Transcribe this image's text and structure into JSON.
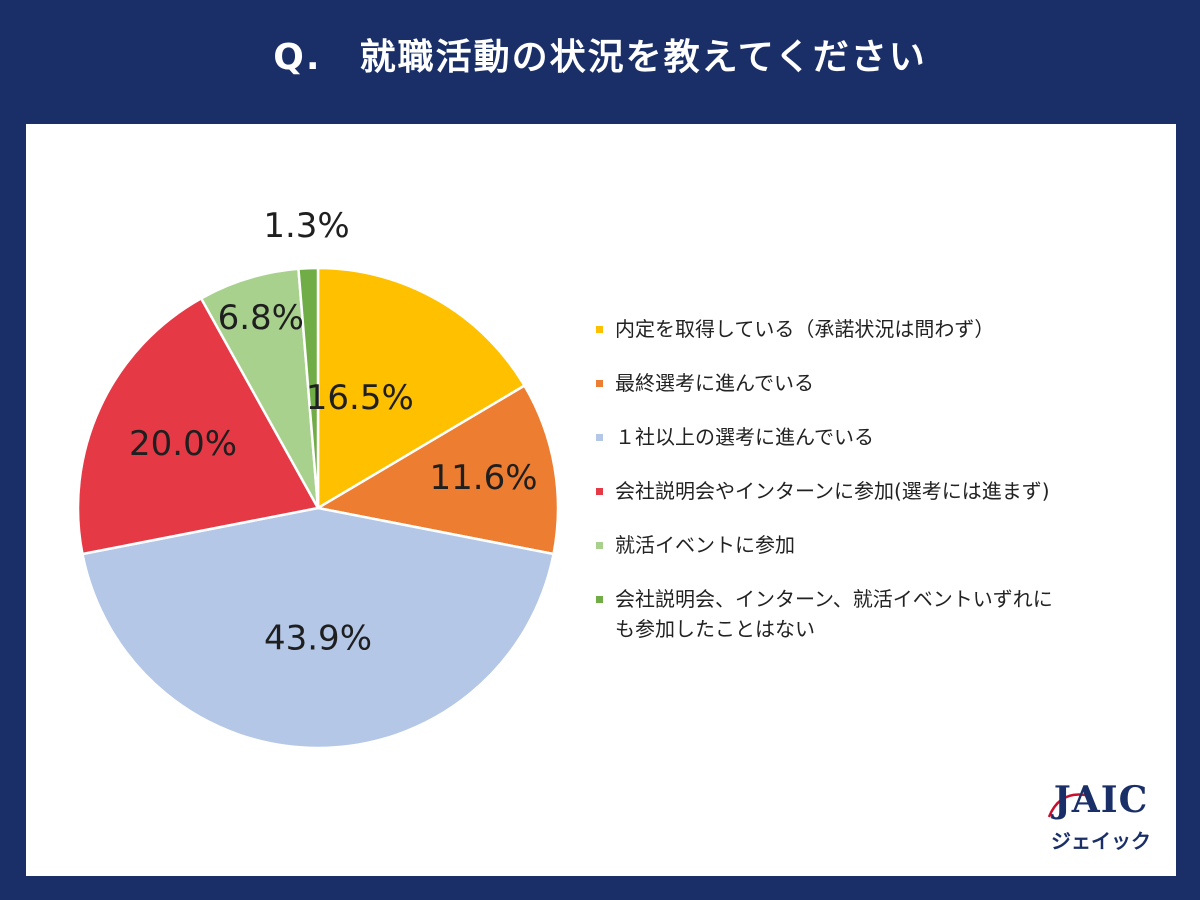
{
  "title": "Q.　就職活動の状況を教えてください",
  "colors": {
    "background": "#1a2f68",
    "panel": "#ffffff"
  },
  "chart_data": {
    "type": "pie",
    "categories": [
      "内定を取得している（承諾状況は問わず）",
      "最終選考に進んでいる",
      "１社以上の選考に進んでいる",
      "会社説明会やインターンに参加(選考には進まず)",
      "就活イベントに参加",
      "会社説明会、インターン、就活イベントいずれにも参加したことはない"
    ],
    "values": [
      16.5,
      11.6,
      43.9,
      20.0,
      6.8,
      1.3
    ],
    "labels": [
      "16.5%",
      "11.6%",
      "43.9%",
      "20.0%",
      "6.8%",
      "1.3%"
    ],
    "colors": [
      "#ffc000",
      "#ed7d31",
      "#b4c7e7",
      "#e63946",
      "#a9d18e",
      "#70ad47"
    ],
    "legend_position": "right"
  },
  "legend": [
    {
      "lines": [
        "内定を取得している（承諾状況は問わず）"
      ]
    },
    {
      "lines": [
        "最終選考に進んでいる"
      ]
    },
    {
      "lines": [
        "１社以上の選考に進んでいる"
      ]
    },
    {
      "lines": [
        "会社説明会やインターンに参加(選考には進まず)"
      ]
    },
    {
      "lines": [
        "就活イベントに参加"
      ]
    },
    {
      "lines": [
        "会社説明会、インターン、就活イベントいずれに",
        "も参加したことはない"
      ]
    }
  ],
  "logo": {
    "main": "JAIC",
    "sub": "ジェイック"
  }
}
